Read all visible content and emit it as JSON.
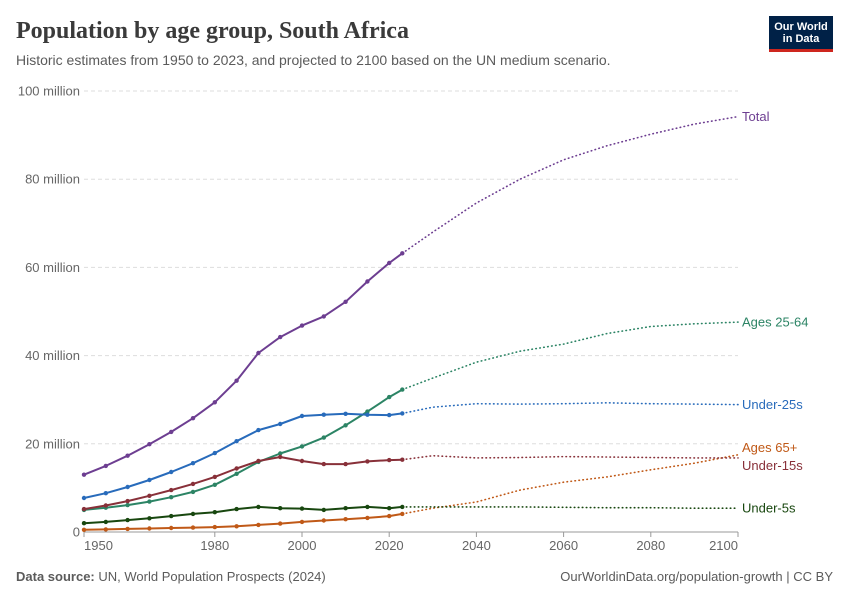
{
  "logo": {
    "line1": "Our World",
    "line2": "in Data"
  },
  "footer": {
    "source_label": "Data source:",
    "source_text": "UN, World Population Prospects (2024)",
    "url_text": "OurWorldinData.org/population-growth",
    "separator": "|",
    "license": "CC BY"
  },
  "chart_data": {
    "type": "line",
    "title": "Population by age group, South Africa",
    "subtitle": "Historic estimates from 1950 to 2023, and projected to 2100 based on the UN medium scenario.",
    "xlim": [
      1950,
      2100
    ],
    "ylim": [
      0,
      100
    ],
    "grid": true,
    "legend": "right",
    "x_ticks": [
      1950,
      1980,
      2000,
      2020,
      2040,
      2060,
      2080,
      2100
    ],
    "y_ticks": [
      {
        "value": 0,
        "label": "0"
      },
      {
        "value": 20,
        "label": "20 million"
      },
      {
        "value": 40,
        "label": "40 million"
      },
      {
        "value": 60,
        "label": "60 million"
      },
      {
        "value": 80,
        "label": "80 million"
      },
      {
        "value": 100,
        "label": "100 million"
      }
    ],
    "x_historic": [
      1950,
      1955,
      1960,
      1965,
      1970,
      1975,
      1980,
      1985,
      1990,
      1995,
      2000,
      2005,
      2010,
      2015,
      2020,
      2023
    ],
    "x_projected": [
      2030,
      2040,
      2050,
      2060,
      2070,
      2080,
      2090,
      2100
    ],
    "series": [
      {
        "name": "Total",
        "color": "#6d3e91",
        "historic": [
          13.0,
          15.0,
          17.3,
          19.9,
          22.7,
          25.8,
          29.4,
          34.3,
          40.6,
          44.2,
          46.8,
          48.9,
          52.2,
          56.8,
          61.0,
          63.2
        ],
        "projected": [
          68.0,
          74.6,
          80.0,
          84.4,
          87.6,
          90.2,
          92.5,
          94.2
        ]
      },
      {
        "name": "Ages 25-64",
        "color": "#2c8465",
        "historic": [
          5.0,
          5.5,
          6.1,
          6.9,
          7.9,
          9.1,
          10.7,
          13.2,
          15.9,
          17.8,
          19.4,
          21.4,
          24.2,
          27.3,
          30.6,
          32.3
        ],
        "projected": [
          34.9,
          38.5,
          41.0,
          42.6,
          45.0,
          46.6,
          47.2,
          47.6
        ]
      },
      {
        "name": "Under-25s",
        "color": "#286bbb",
        "historic": [
          7.7,
          8.8,
          10.2,
          11.8,
          13.6,
          15.6,
          17.9,
          20.6,
          23.1,
          24.5,
          26.3,
          26.6,
          26.8,
          26.6,
          26.5,
          26.9
        ],
        "projected": [
          28.3,
          29.1,
          29.0,
          29.1,
          29.3,
          29.1,
          29.0,
          28.9
        ]
      },
      {
        "name": "Ages 65+",
        "color": "#c05917",
        "historic": [
          0.5,
          0.6,
          0.7,
          0.8,
          0.9,
          1.0,
          1.1,
          1.3,
          1.6,
          1.9,
          2.3,
          2.6,
          2.9,
          3.2,
          3.6,
          4.1
        ],
        "projected": [
          5.4,
          6.8,
          9.5,
          11.3,
          12.5,
          14.1,
          15.6,
          17.5
        ]
      },
      {
        "name": "Under-15s",
        "color": "#883039",
        "historic": [
          5.2,
          6.0,
          7.0,
          8.2,
          9.5,
          10.9,
          12.5,
          14.4,
          16.1,
          17.0,
          16.1,
          15.4,
          15.4,
          16.0,
          16.3,
          16.4
        ],
        "projected": [
          17.3,
          16.8,
          16.9,
          17.1,
          17.0,
          16.9,
          16.8,
          16.8
        ]
      },
      {
        "name": "Under-5s",
        "color": "#18470f",
        "historic": [
          2.0,
          2.3,
          2.7,
          3.1,
          3.6,
          4.1,
          4.5,
          5.2,
          5.7,
          5.4,
          5.3,
          5.0,
          5.4,
          5.7,
          5.4,
          5.7
        ],
        "projected": [
          5.7,
          5.7,
          5.7,
          5.6,
          5.5,
          5.5,
          5.4,
          5.4
        ]
      }
    ]
  }
}
